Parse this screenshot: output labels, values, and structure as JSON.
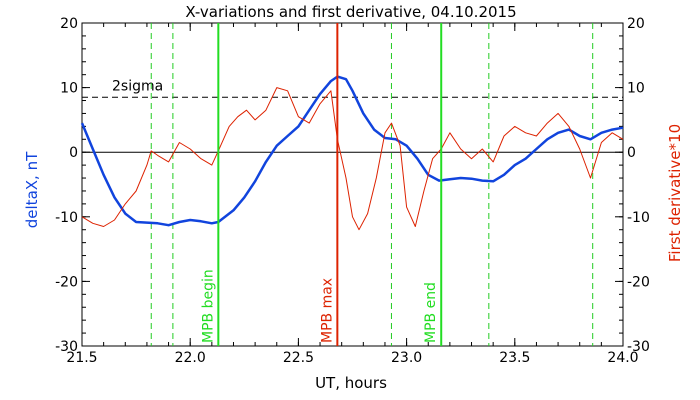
{
  "chart_data": {
    "type": "line",
    "title": "X-variations and first derivative, 04.10.2015",
    "xlabel": "UT, hours",
    "ylabel_left": "deltaX, nT",
    "ylabel_right": "First derivative*10",
    "xlim": [
      21.5,
      24.0
    ],
    "ylim_left": [
      -30,
      20
    ],
    "ylim_right": [
      -30,
      20
    ],
    "x_ticks": [
      "21.5",
      "22.0",
      "22.5",
      "23.0",
      "23.5",
      "24.0"
    ],
    "y_ticks_left": [
      "20",
      "10",
      "0",
      "-10",
      "-20",
      "-30"
    ],
    "y_ticks_right": [
      "20",
      "10",
      "0",
      "-10",
      "-20",
      "-30"
    ],
    "threshold": {
      "label": "2sigma",
      "value": 8.5,
      "style": "dashed",
      "color": "#000000"
    },
    "zero_line": 0,
    "vertical_markers": [
      {
        "x": 22.13,
        "label": "MPB begin",
        "color": "#22dd22"
      },
      {
        "x": 22.68,
        "label": "MPB max",
        "color": "#dd2200"
      },
      {
        "x": 23.16,
        "label": "MPB end",
        "color": "#22dd22"
      }
    ],
    "dashed_markers": {
      "color": "#22cc22",
      "x": [
        21.82,
        21.92,
        22.93,
        23.38,
        23.86
      ]
    },
    "series": [
      {
        "name": "deltaX, nT",
        "axis": "left",
        "color": "#1144dd",
        "x": [
          21.5,
          21.55,
          21.6,
          21.65,
          21.7,
          21.75,
          21.8,
          21.85,
          21.9,
          21.95,
          22.0,
          22.05,
          22.1,
          22.13,
          22.2,
          22.25,
          22.3,
          22.35,
          22.4,
          22.45,
          22.5,
          22.55,
          22.6,
          22.65,
          22.68,
          22.72,
          22.75,
          22.8,
          22.85,
          22.9,
          22.95,
          23.0,
          23.05,
          23.1,
          23.15,
          23.2,
          23.25,
          23.3,
          23.35,
          23.4,
          23.45,
          23.5,
          23.55,
          23.6,
          23.65,
          23.7,
          23.75,
          23.8,
          23.85,
          23.9,
          23.95,
          24.0
        ],
        "y": [
          4.5,
          0.5,
          -3.5,
          -7.0,
          -9.5,
          -10.8,
          -10.9,
          -11.0,
          -11.3,
          -10.8,
          -10.5,
          -10.7,
          -11.0,
          -10.8,
          -9.0,
          -7.0,
          -4.5,
          -1.5,
          1.0,
          2.5,
          4.0,
          6.5,
          9.0,
          11.0,
          11.7,
          11.3,
          9.5,
          6.0,
          3.5,
          2.2,
          2.0,
          1.0,
          -1.0,
          -3.5,
          -4.4,
          -4.2,
          -4.0,
          -4.1,
          -4.4,
          -4.5,
          -3.5,
          -2.0,
          -1.0,
          0.5,
          2.0,
          3.0,
          3.5,
          2.5,
          2.0,
          3.0,
          3.5,
          3.8
        ]
      },
      {
        "name": "First derivative*10",
        "axis": "right",
        "color": "#dd2200",
        "x": [
          21.5,
          21.55,
          21.6,
          21.65,
          21.7,
          21.75,
          21.8,
          21.82,
          21.85,
          21.9,
          21.95,
          22.0,
          22.05,
          22.1,
          22.13,
          22.18,
          22.22,
          22.26,
          22.3,
          22.35,
          22.4,
          22.45,
          22.5,
          22.55,
          22.6,
          22.65,
          22.68,
          22.72,
          22.75,
          22.78,
          22.82,
          22.86,
          22.9,
          22.93,
          22.97,
          23.0,
          23.04,
          23.08,
          23.12,
          23.16,
          23.2,
          23.25,
          23.3,
          23.35,
          23.4,
          23.45,
          23.5,
          23.55,
          23.6,
          23.65,
          23.7,
          23.75,
          23.8,
          23.85,
          23.9,
          23.95,
          24.0
        ],
        "y": [
          -10.0,
          -11.0,
          -11.5,
          -10.5,
          -8.0,
          -6.0,
          -2.0,
          0.2,
          -0.5,
          -1.5,
          1.5,
          0.5,
          -1.0,
          -2.0,
          0.2,
          4.0,
          5.5,
          6.5,
          5.0,
          6.5,
          10.0,
          9.5,
          5.5,
          4.5,
          7.5,
          9.5,
          2.0,
          -4.0,
          -10.0,
          -12.0,
          -9.5,
          -4.0,
          3.0,
          4.5,
          1.0,
          -8.5,
          -11.5,
          -6.0,
          -1.0,
          0.5,
          3.0,
          0.5,
          -1.0,
          0.5,
          -1.5,
          2.5,
          4.0,
          3.0,
          2.5,
          4.5,
          6.0,
          4.0,
          0.5,
          -4.0,
          1.5,
          3.0,
          2.0
        ]
      }
    ]
  }
}
